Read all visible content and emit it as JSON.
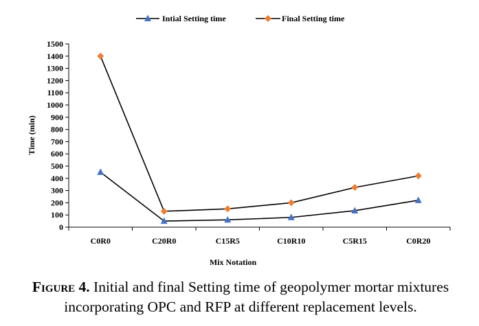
{
  "chart_data": {
    "type": "line",
    "categories": [
      "C0R0",
      "C20R0",
      "C15R5",
      "C10R10",
      "C5R15",
      "C0R20"
    ],
    "series": [
      {
        "name": "Intial Setting time",
        "values": [
          450,
          50,
          60,
          80,
          135,
          220
        ],
        "color": "#4472C4",
        "marker": "triangle"
      },
      {
        "name": "Final Setting time",
        "values": [
          1400,
          130,
          150,
          200,
          325,
          420
        ],
        "color": "#ED7D31",
        "marker": "diamond"
      }
    ],
    "xlabel": "Mix Notation",
    "ylabel": "Time (min)",
    "ylim": [
      0,
      1500
    ],
    "yticks": [
      0,
      100,
      200,
      300,
      400,
      500,
      600,
      700,
      800,
      900,
      1000,
      1100,
      1200,
      1300,
      1400,
      1500
    ],
    "grid": false,
    "legend_position": "top"
  },
  "caption": {
    "label": "Figure 4.",
    "text": " Initial and final Setting time of geopolymer mortar mixtures incorporating OPC and RFP at different replacement levels."
  }
}
